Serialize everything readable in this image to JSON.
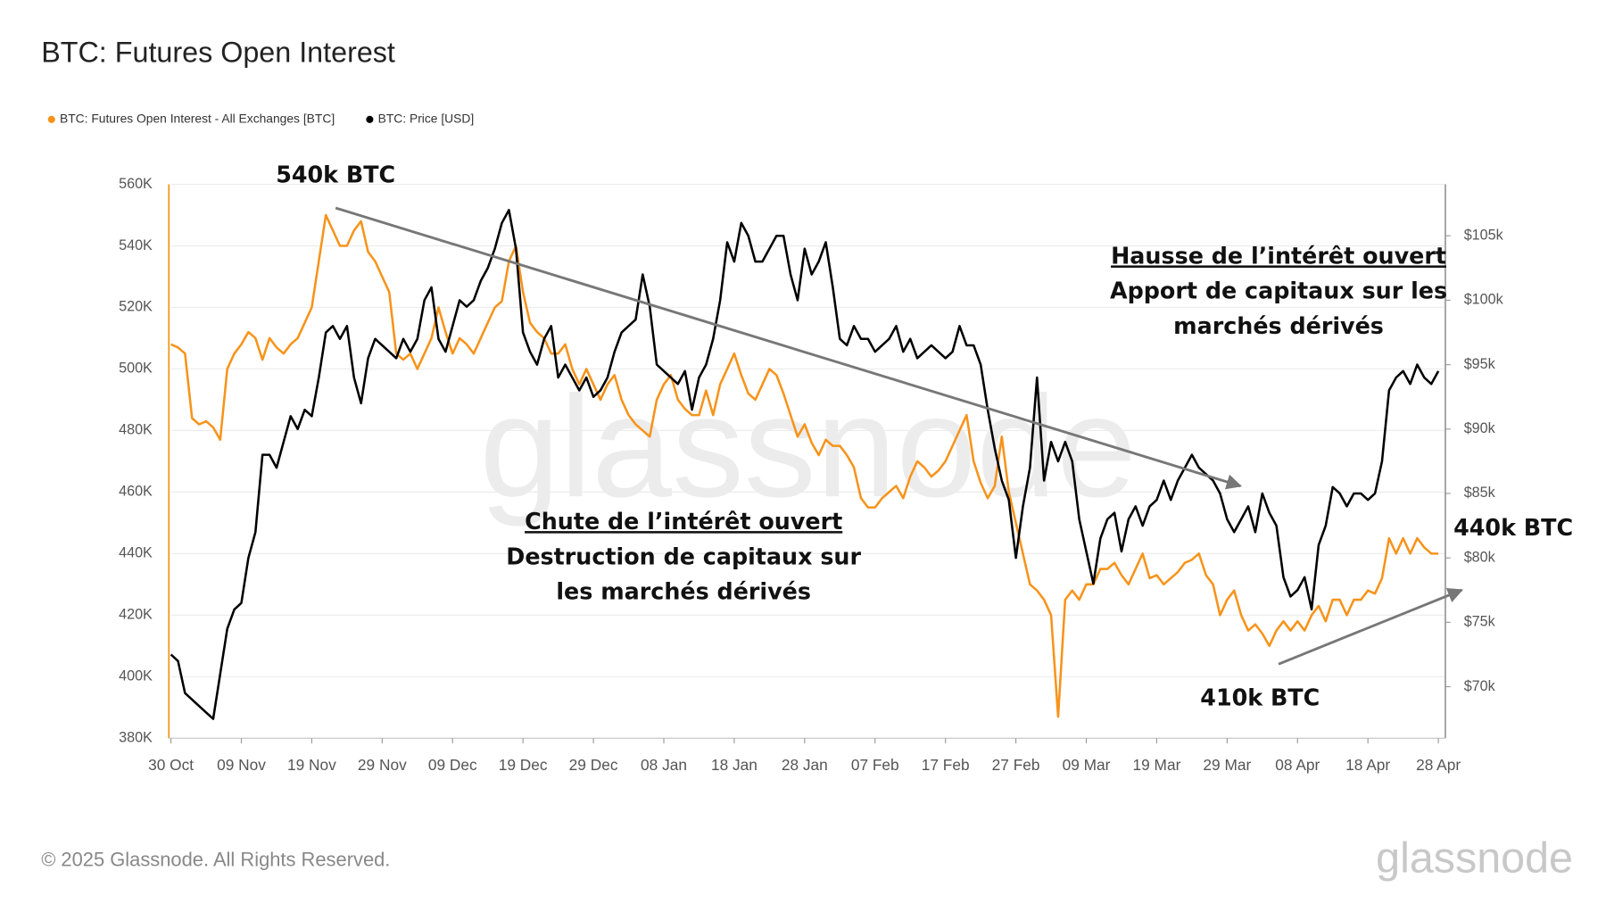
{
  "chart_data": {
    "type": "line",
    "title": "BTC: Futures Open Interest",
    "categories": [
      "30 Oct",
      null,
      null,
      null,
      null,
      null,
      null,
      null,
      null,
      null,
      "09 Nov",
      null,
      null,
      null,
      null,
      null,
      null,
      null,
      null,
      null,
      "19 Nov",
      null,
      null,
      null,
      null,
      null,
      null,
      null,
      null,
      null,
      "29 Nov",
      null,
      null,
      null,
      null,
      null,
      null,
      null,
      null,
      null,
      "09 Dec",
      null,
      null,
      null,
      null,
      null,
      null,
      null,
      null,
      null,
      "19 Dec",
      null,
      null,
      null,
      null,
      null,
      null,
      null,
      null,
      null,
      "29 Dec",
      null,
      null,
      null,
      null,
      null,
      null,
      null,
      null,
      null,
      "08 Jan",
      null,
      null,
      null,
      null,
      null,
      null,
      null,
      null,
      null,
      "18 Jan",
      null,
      null,
      null,
      null,
      null,
      null,
      null,
      null,
      null,
      "28 Jan",
      null,
      null,
      null,
      null,
      null,
      null,
      null,
      null,
      null,
      "07 Feb",
      null,
      null,
      null,
      null,
      null,
      null,
      null,
      null,
      null,
      "17 Feb",
      null,
      null,
      null,
      null,
      null,
      null,
      null,
      null,
      null,
      "27 Feb",
      null,
      null,
      null,
      null,
      null,
      null,
      null,
      null,
      null,
      "09 Mar",
      null,
      null,
      null,
      null,
      null,
      null,
      null,
      null,
      null,
      "19 Mar",
      null,
      null,
      null,
      null,
      null,
      null,
      null,
      null,
      null,
      "29 Mar",
      null,
      null,
      null,
      null,
      null,
      null,
      null,
      null,
      null,
      "08 Apr",
      null,
      null,
      null,
      null,
      null,
      null,
      null,
      null,
      null,
      "18 Apr",
      null,
      null,
      null,
      null,
      null,
      null,
      null,
      null,
      null,
      "28 Apr"
    ],
    "series": [
      {
        "name": "BTC: Futures Open Interest - All Exchanges [BTC]",
        "color": "#f7931a",
        "values": [
          508000,
          507000,
          505000,
          484000,
          482000,
          483000,
          481000,
          477000,
          500000,
          505000,
          508000,
          512000,
          510000,
          503000,
          510000,
          507000,
          505000,
          508000,
          510000,
          515000,
          520000,
          535000,
          550000,
          545000,
          540000,
          540000,
          545000,
          548000,
          538000,
          535000,
          530000,
          525000,
          505000,
          503000,
          505000,
          500000,
          505000,
          510000,
          520000,
          512000,
          505000,
          510000,
          508000,
          505000,
          510000,
          515000,
          520000,
          522000,
          535000,
          540000,
          525000,
          515000,
          512000,
          510000,
          505000,
          505000,
          508000,
          500000,
          495000,
          500000,
          495000,
          490000,
          495000,
          498000,
          490000,
          485000,
          482000,
          480000,
          478000,
          490000,
          495000,
          498000,
          490000,
          487000,
          485000,
          485000,
          493000,
          485000,
          495000,
          500000,
          505000,
          498000,
          492000,
          490000,
          495000,
          500000,
          498000,
          492000,
          485000,
          478000,
          482000,
          476000,
          472000,
          477000,
          475000,
          475000,
          472000,
          468000,
          458000,
          455000,
          455000,
          458000,
          460000,
          462000,
          458000,
          465000,
          470000,
          468000,
          465000,
          467000,
          470000,
          475000,
          480000,
          485000,
          470000,
          463000,
          458000,
          462000,
          478000,
          460000,
          450000,
          440000,
          430000,
          428000,
          425000,
          420000,
          387000,
          425000,
          428000,
          425000,
          430000,
          430000,
          435000,
          435000,
          437000,
          433000,
          430000,
          435000,
          440000,
          432000,
          433000,
          430000,
          432000,
          434000,
          437000,
          438000,
          440000,
          433000,
          430000,
          420000,
          425000,
          428000,
          420000,
          415000,
          417000,
          414000,
          410000,
          415000,
          418000,
          415000,
          418000,
          415000,
          420000,
          423000,
          418000,
          425000,
          425000,
          420000,
          425000,
          425000,
          428000,
          427000,
          432000,
          445000,
          440000,
          445000,
          440000,
          445000,
          442000,
          440000,
          440000
        ]
      },
      {
        "name": "BTC: Price [USD]",
        "color": "#000000",
        "axis": "y2",
        "values": [
          72500,
          72000,
          69500,
          69000,
          68500,
          68000,
          67500,
          71000,
          74500,
          76000,
          76500,
          80000,
          82000,
          88000,
          88000,
          87000,
          89000,
          91000,
          90000,
          91500,
          91000,
          94000,
          97500,
          98000,
          97000,
          98000,
          94000,
          92000,
          95500,
          97000,
          96500,
          96000,
          95500,
          97000,
          96000,
          97000,
          100000,
          101000,
          97000,
          96000,
          98000,
          100000,
          99500,
          100000,
          101500,
          102500,
          104000,
          106000,
          107000,
          104000,
          97500,
          96000,
          95000,
          97000,
          98000,
          94000,
          95000,
          94000,
          93000,
          94000,
          92500,
          93000,
          94000,
          96000,
          97500,
          98000,
          98500,
          102000,
          99500,
          95000,
          94500,
          94000,
          93500,
          94500,
          91500,
          94000,
          95000,
          97000,
          100000,
          104500,
          103000,
          106000,
          105000,
          103000,
          103000,
          104000,
          105000,
          105000,
          102000,
          100000,
          104000,
          102000,
          103000,
          104500,
          101000,
          97000,
          96500,
          98000,
          97000,
          97000,
          96000,
          96500,
          97000,
          98000,
          96000,
          97000,
          95500,
          96000,
          96500,
          96000,
          95500,
          96000,
          98000,
          96500,
          96500,
          95000,
          91500,
          88500,
          86000,
          84500,
          80000,
          84000,
          87000,
          94000,
          86000,
          89000,
          87500,
          89000,
          87500,
          83000,
          80500,
          78000,
          81500,
          83000,
          83500,
          80500,
          83000,
          84000,
          82500,
          84000,
          84500,
          86000,
          84500,
          86000,
          87000,
          88000,
          87000,
          86500,
          86000,
          85000,
          83000,
          82000,
          83000,
          84000,
          82000,
          85000,
          83500,
          82500,
          78500,
          77000,
          77500,
          78500,
          76000,
          81000,
          82500,
          85500,
          85000,
          84000,
          85000,
          85000,
          84500,
          85000,
          87500,
          93000,
          94000,
          94500,
          93500,
          95000,
          94000,
          93500,
          94500
        ]
      }
    ],
    "ylim": [
      380000,
      560000
    ],
    "yticks": [
      {
        "value": 380000,
        "label": "380K"
      },
      {
        "value": 400000,
        "label": "400K"
      },
      {
        "value": 420000,
        "label": "420K"
      },
      {
        "value": 440000,
        "label": "440K"
      },
      {
        "value": 460000,
        "label": "460K"
      },
      {
        "value": 480000,
        "label": "480K"
      },
      {
        "value": 500000,
        "label": "500K"
      },
      {
        "value": 520000,
        "label": "520K"
      },
      {
        "value": 540000,
        "label": "540K"
      },
      {
        "value": 560000,
        "label": "560K"
      }
    ],
    "y2lim": [
      66000,
      109000
    ],
    "y2ticks": [
      {
        "value": 70000,
        "label": "$70k"
      },
      {
        "value": 75000,
        "label": "$75k"
      },
      {
        "value": 80000,
        "label": "$80k"
      },
      {
        "value": 85000,
        "label": "$85k"
      },
      {
        "value": 90000,
        "label": "$90k"
      },
      {
        "value": 95000,
        "label": "$95k"
      },
      {
        "value": 100000,
        "label": "$100k"
      },
      {
        "value": 105000,
        "label": "$105k"
      }
    ],
    "grid": true,
    "legend": "top-left",
    "annotations": [
      "540k BTC",
      "440k BTC",
      "410k BTC",
      "Hausse de l’intérêt ouvert",
      "Apport de capitaux sur les",
      "marchés dérivés",
      "Chute de l’intérêt ouvert",
      "Destruction de capitaux sur",
      "les marchés dérivés"
    ],
    "watermark": "glassnode",
    "footer": "© 2025 Glassnode. All Rights Reserved.",
    "logo": "glassnode"
  }
}
